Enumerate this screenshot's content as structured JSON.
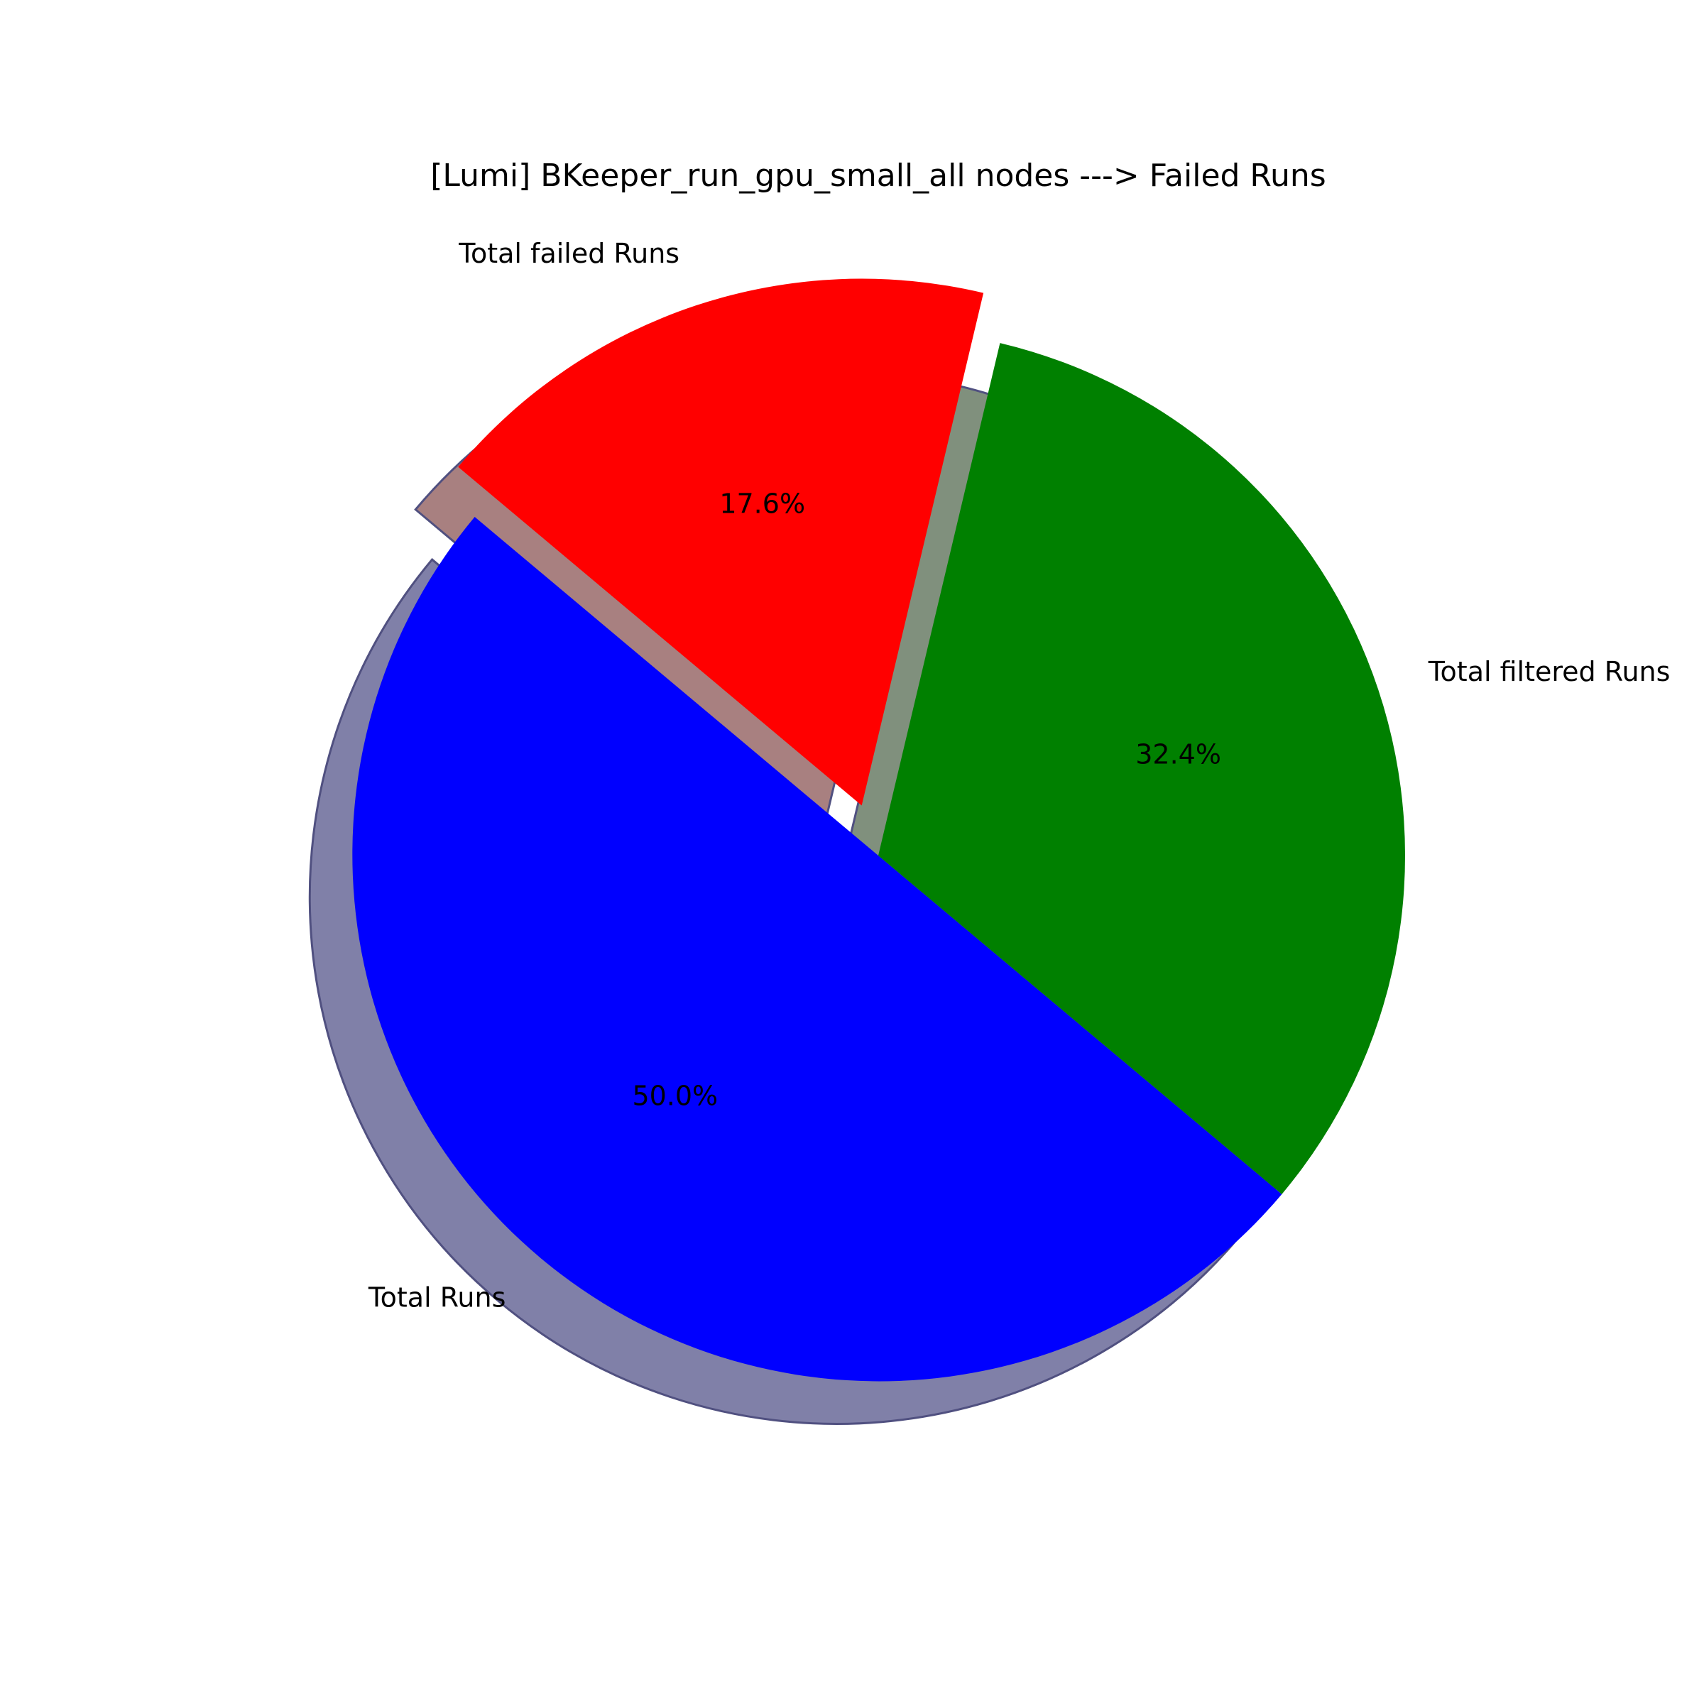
{
  "chart_data": {
    "type": "pie",
    "title": "[Lumi] BKeeper_run_gpu_small_all nodes ---> Failed Runs",
    "labels": [
      "Total Runs",
      "Total filtered Runs",
      "Total failed Runs"
    ],
    "values": [
      50.0,
      32.4,
      17.6
    ],
    "percent_labels": [
      "50.0%",
      "32.4%",
      "17.6%"
    ],
    "colors": [
      "#0000ff",
      "#008000",
      "#ff0000"
    ],
    "exploded": [
      false,
      false,
      true
    ],
    "shadow": true,
    "start_angle_deg": 140,
    "direction": "counterclockwise"
  }
}
